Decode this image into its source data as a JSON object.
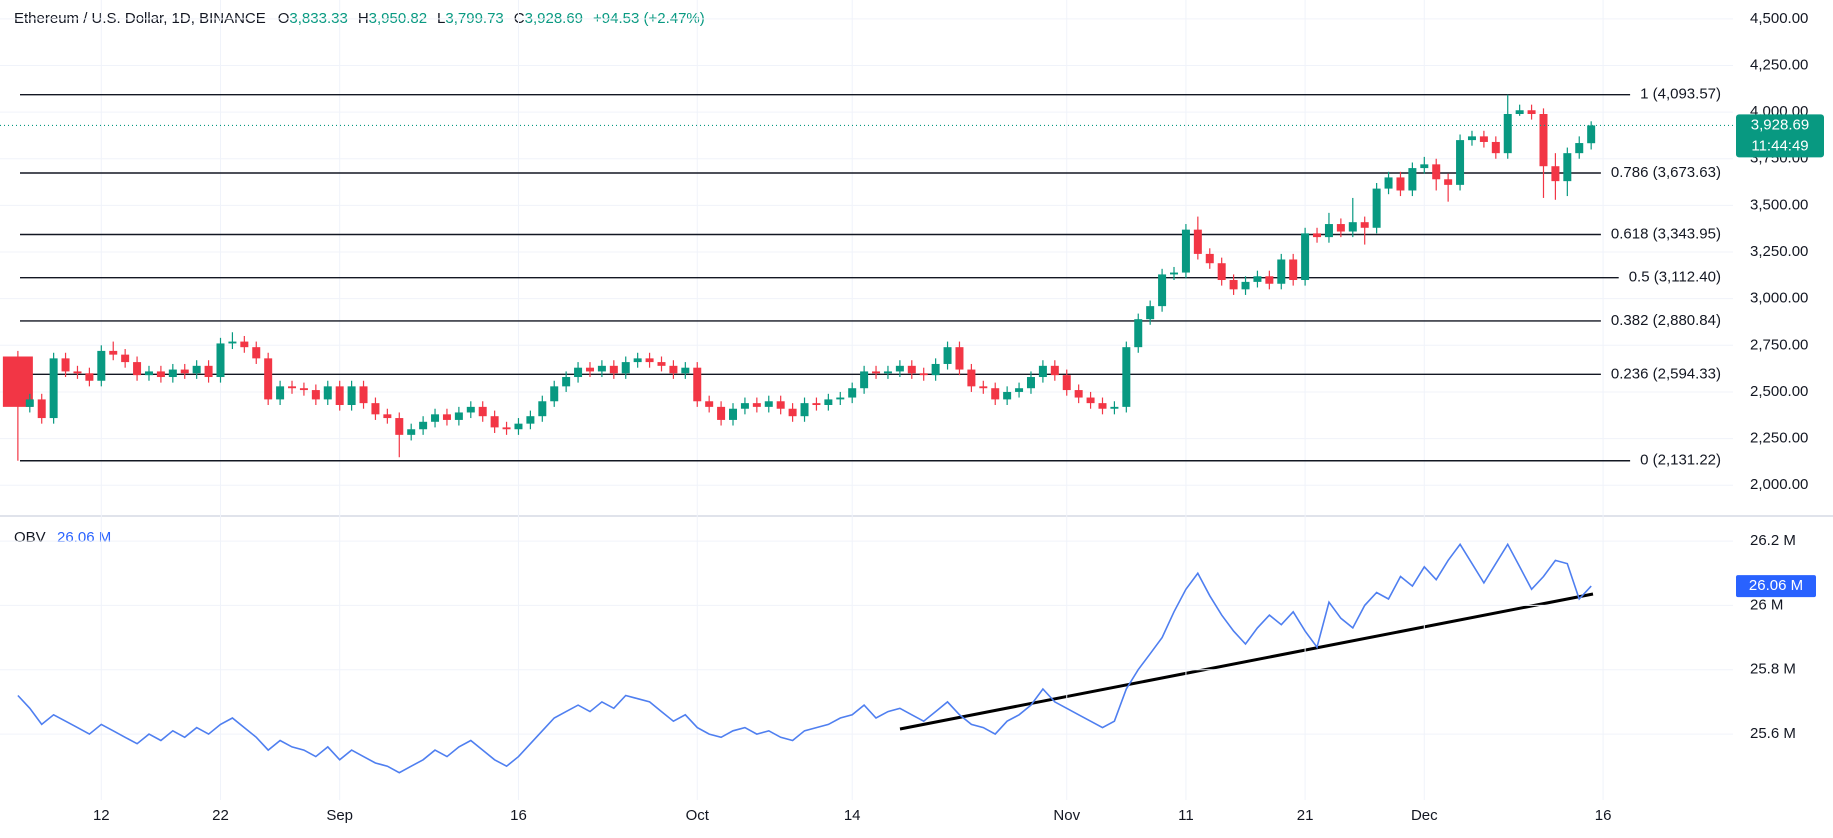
{
  "header": {
    "title": "Ethereum / U.S. Dollar, 1D, BINANCE",
    "ohlc": [
      {
        "key": "O",
        "value": "3,833.33"
      },
      {
        "key": "H",
        "value": "3,950.82"
      },
      {
        "key": "L",
        "value": "3,799.73"
      },
      {
        "key": "C",
        "value": "3,928.69"
      }
    ],
    "change": "+94.53 (+2.47%)"
  },
  "chart_data": [
    {
      "type": "candlestick",
      "up_color": "#089981",
      "down_color": "#f23645",
      "grid": true,
      "open": [
        2690,
        2420,
        2460,
        2360,
        2680,
        2610,
        2600,
        2560,
        2720,
        2700,
        2660,
        2590,
        2610,
        2580,
        2620,
        2600,
        2640,
        2580,
        2760,
        2770,
        2740,
        2680,
        2460,
        2530,
        2520,
        2510,
        2460,
        2530,
        2430,
        2530,
        2440,
        2380,
        2360,
        2270,
        2300,
        2340,
        2380,
        2350,
        2390,
        2420,
        2370,
        2310,
        2300,
        2330,
        2370,
        2450,
        2530,
        2580,
        2630,
        2610,
        2640,
        2600,
        2660,
        2680,
        2660,
        2640,
        2600,
        2630,
        2450,
        2420,
        2350,
        2410,
        2440,
        2420,
        2450,
        2410,
        2370,
        2440,
        2430,
        2460,
        2470,
        2520,
        2610,
        2600,
        2610,
        2640,
        2600,
        2590,
        2650,
        2740,
        2620,
        2530,
        2520,
        2460,
        2500,
        2520,
        2580,
        2640,
        2590,
        2510,
        2470,
        2440,
        2410,
        2420,
        2740,
        2890,
        2960,
        3130,
        3140,
        3370,
        3240,
        3190,
        3100,
        3050,
        3090,
        3120,
        3080,
        3210,
        3100,
        3350,
        3330,
        3400,
        3360,
        3410,
        3380,
        3590,
        3650,
        3580,
        3700,
        3720,
        3640,
        3610,
        3850,
        3870,
        3840,
        3780,
        3990,
        4010,
        3990,
        3710,
        3630,
        3780,
        3833.33
      ],
      "high": [
        2720,
        2490,
        2490,
        2710,
        2710,
        2640,
        2630,
        2750,
        2770,
        2730,
        2690,
        2640,
        2640,
        2650,
        2650,
        2670,
        2670,
        2790,
        2820,
        2800,
        2770,
        2710,
        2560,
        2560,
        2550,
        2540,
        2560,
        2560,
        2560,
        2560,
        2470,
        2410,
        2390,
        2330,
        2370,
        2410,
        2410,
        2420,
        2450,
        2450,
        2400,
        2340,
        2360,
        2400,
        2480,
        2560,
        2610,
        2660,
        2660,
        2670,
        2670,
        2690,
        2710,
        2710,
        2690,
        2670,
        2660,
        2660,
        2480,
        2450,
        2440,
        2470,
        2470,
        2480,
        2480,
        2440,
        2470,
        2470,
        2490,
        2500,
        2550,
        2640,
        2640,
        2640,
        2670,
        2670,
        2630,
        2680,
        2770,
        2770,
        2650,
        2560,
        2550,
        2530,
        2550,
        2610,
        2670,
        2670,
        2620,
        2540,
        2500,
        2470,
        2450,
        2770,
        2920,
        2990,
        3160,
        3170,
        3400,
        3440,
        3270,
        3220,
        3130,
        3120,
        3150,
        3150,
        3240,
        3240,
        3380,
        3380,
        3460,
        3430,
        3540,
        3440,
        3620,
        3680,
        3680,
        3730,
        3760,
        3750,
        3670,
        3880,
        3900,
        3900,
        3870,
        4093.57,
        4040,
        4040,
        4020,
        3780,
        3810,
        3870,
        3950.82
      ],
      "low": [
        2131.22,
        2390,
        2330,
        2330,
        2580,
        2570,
        2530,
        2530,
        2670,
        2630,
        2560,
        2560,
        2550,
        2550,
        2570,
        2570,
        2550,
        2550,
        2730,
        2710,
        2650,
        2430,
        2430,
        2490,
        2480,
        2430,
        2430,
        2400,
        2400,
        2410,
        2350,
        2330,
        2150,
        2240,
        2270,
        2310,
        2320,
        2320,
        2360,
        2340,
        2280,
        2270,
        2270,
        2300,
        2340,
        2420,
        2500,
        2550,
        2580,
        2580,
        2570,
        2570,
        2630,
        2630,
        2610,
        2570,
        2570,
        2420,
        2390,
        2320,
        2320,
        2380,
        2390,
        2390,
        2380,
        2340,
        2340,
        2400,
        2400,
        2430,
        2440,
        2490,
        2570,
        2570,
        2580,
        2570,
        2560,
        2560,
        2620,
        2590,
        2500,
        2490,
        2430,
        2430,
        2470,
        2490,
        2550,
        2560,
        2480,
        2440,
        2410,
        2380,
        2380,
        2390,
        2710,
        2860,
        2930,
        3100,
        3110,
        3210,
        3160,
        3070,
        3020,
        3020,
        3060,
        3050,
        3050,
        3070,
        3070,
        3300,
        3300,
        3330,
        3330,
        3290,
        3350,
        3560,
        3550,
        3550,
        3670,
        3580,
        3520,
        3580,
        3820,
        3810,
        3750,
        3750,
        3980,
        3960,
        3540,
        3530,
        3550,
        3750,
        3799.73
      ],
      "close": [
        2420,
        2460,
        2360,
        2680,
        2610,
        2600,
        2560,
        2720,
        2700,
        2660,
        2590,
        2610,
        2580,
        2620,
        2600,
        2640,
        2580,
        2760,
        2770,
        2740,
        2680,
        2460,
        2530,
        2520,
        2510,
        2460,
        2530,
        2430,
        2530,
        2440,
        2380,
        2360,
        2270,
        2300,
        2340,
        2380,
        2350,
        2390,
        2420,
        2370,
        2310,
        2300,
        2330,
        2370,
        2450,
        2530,
        2580,
        2630,
        2610,
        2640,
        2600,
        2660,
        2680,
        2660,
        2640,
        2600,
        2630,
        2450,
        2420,
        2350,
        2410,
        2440,
        2420,
        2450,
        2410,
        2370,
        2440,
        2430,
        2460,
        2470,
        2520,
        2610,
        2600,
        2610,
        2640,
        2600,
        2590,
        2650,
        2740,
        2620,
        2530,
        2520,
        2460,
        2500,
        2520,
        2580,
        2640,
        2590,
        2510,
        2470,
        2440,
        2410,
        2420,
        2740,
        2890,
        2960,
        3130,
        3140,
        3370,
        3240,
        3190,
        3100,
        3050,
        3090,
        3120,
        3080,
        3210,
        3100,
        3350,
        3330,
        3400,
        3360,
        3410,
        3380,
        3590,
        3650,
        3580,
        3700,
        3720,
        3640,
        3610,
        3850,
        3870,
        3840,
        3780,
        3990,
        4010,
        3990,
        3710,
        3630,
        3780,
        3834.16,
        3928.69
      ],
      "ylim": [
        1835,
        4601
      ],
      "yticks": [
        {
          "value": 2000,
          "label": "2,000.00"
        },
        {
          "value": 2250,
          "label": "2,250.00"
        },
        {
          "value": 2500,
          "label": "2,500.00"
        },
        {
          "value": 2750,
          "label": "2,750.00"
        },
        {
          "value": 3000,
          "label": "3,000.00"
        },
        {
          "value": 3250,
          "label": "3,250.00"
        },
        {
          "value": 3500,
          "label": "3,500.00"
        },
        {
          "value": 3750,
          "label": "3,750.00"
        },
        {
          "value": 4000,
          "label": "4,000.00"
        },
        {
          "value": 4250,
          "label": "4,250.00"
        },
        {
          "value": 4500,
          "label": "4,500.00"
        }
      ],
      "xlim": [
        -1.5,
        143.9
      ],
      "xticks": [
        {
          "value": 7,
          "label": "12"
        },
        {
          "value": 17,
          "label": "22"
        },
        {
          "value": 27,
          "label": "Sep"
        },
        {
          "value": 42,
          "label": "16"
        },
        {
          "value": 57,
          "label": "Oct"
        },
        {
          "value": 70,
          "label": "14"
        },
        {
          "value": 88,
          "label": "Nov"
        },
        {
          "value": 98,
          "label": "11"
        },
        {
          "value": 108,
          "label": "21"
        },
        {
          "value": 118,
          "label": "Dec"
        },
        {
          "value": 133,
          "label": "16"
        }
      ],
      "fib_levels": [
        {
          "value": 4093.57,
          "label": "1 (4,093.57)"
        },
        {
          "value": 3673.63,
          "label": "0.786 (3,673.63)"
        },
        {
          "value": 3343.95,
          "label": "0.618 (3,343.95)"
        },
        {
          "value": 3112.4,
          "label": "0.5 (3,112.40)"
        },
        {
          "value": 2880.84,
          "label": "0.382 (2,880.84)"
        },
        {
          "value": 2594.33,
          "label": "0.236 (2,594.33)"
        },
        {
          "value": 2131.22,
          "label": "0 (2,131.22)"
        }
      ],
      "last_price_label": "3,928.69",
      "countdown": "11:44:49"
    },
    {
      "type": "line",
      "title": "OBV",
      "last_value_label": "26.06 M",
      "series": [
        {
          "color": "#4f7ff0",
          "values": [
            25.72,
            25.68,
            25.63,
            25.66,
            25.64,
            25.62,
            25.6,
            25.63,
            25.61,
            25.59,
            25.57,
            25.6,
            25.58,
            25.61,
            25.59,
            25.62,
            25.6,
            25.63,
            25.65,
            25.62,
            25.59,
            25.55,
            25.58,
            25.56,
            25.55,
            25.53,
            25.56,
            25.52,
            25.55,
            25.53,
            25.51,
            25.5,
            25.48,
            25.5,
            25.52,
            25.55,
            25.53,
            25.56,
            25.58,
            25.55,
            25.52,
            25.5,
            25.53,
            25.57,
            25.61,
            25.65,
            25.67,
            25.69,
            25.67,
            25.7,
            25.68,
            25.72,
            25.71,
            25.7,
            25.67,
            25.64,
            25.66,
            25.62,
            25.6,
            25.59,
            25.61,
            25.62,
            25.6,
            25.61,
            25.59,
            25.58,
            25.61,
            25.62,
            25.63,
            25.65,
            25.66,
            25.69,
            25.65,
            25.67,
            25.68,
            25.66,
            25.64,
            25.67,
            25.7,
            25.66,
            25.63,
            25.62,
            25.6,
            25.64,
            25.66,
            25.69,
            25.74,
            25.7,
            25.68,
            25.66,
            25.64,
            25.62,
            25.64,
            25.74,
            25.8,
            25.85,
            25.9,
            25.98,
            26.05,
            26.1,
            26.03,
            25.97,
            25.92,
            25.88,
            25.93,
            25.97,
            25.94,
            25.98,
            25.92,
            25.87,
            26.01,
            25.96,
            25.93,
            26,
            26.04,
            26.02,
            26.09,
            26.06,
            26.12,
            26.08,
            26.14,
            26.19,
            26.13,
            26.07,
            26.13,
            26.19,
            26.12,
            26.05,
            26.09,
            26.14,
            26.13,
            26.02,
            26.06
          ]
        }
      ],
      "ylim": [
        25.395,
        26.278
      ],
      "yticks": [
        {
          "value": 25.6,
          "label": "25.6 M"
        },
        {
          "value": 25.8,
          "label": "25.8 M"
        },
        {
          "value": 26,
          "label": "26 M"
        },
        {
          "value": 26.2,
          "label": "26.2 M"
        }
      ]
    }
  ]
}
